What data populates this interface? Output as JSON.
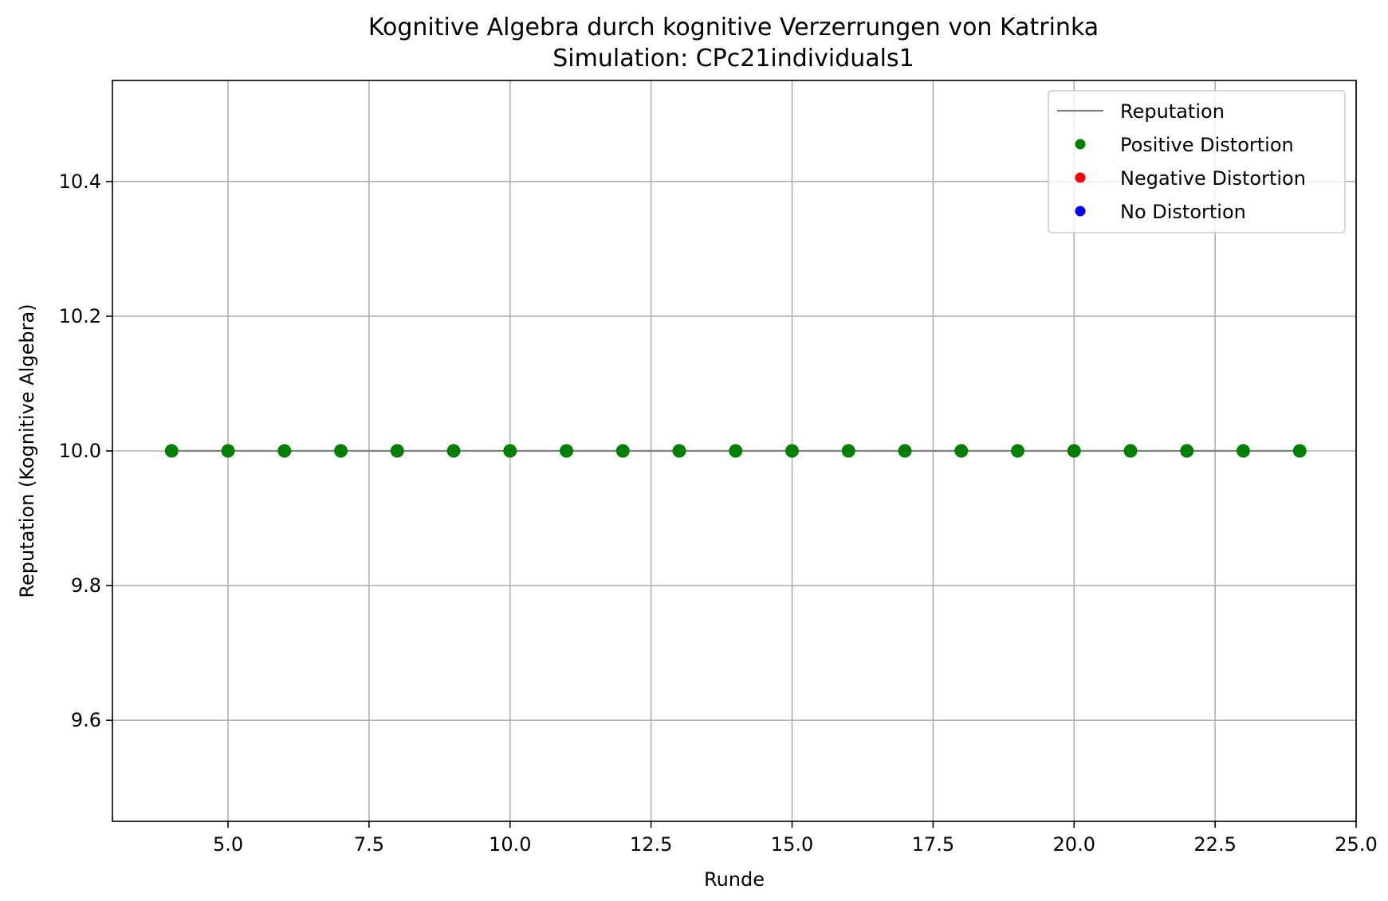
{
  "chart_data": {
    "type": "scatter",
    "title": "Kognitive Algebra durch kognitive Verzerrungen von Katrinka",
    "subtitle": "Simulation: CPc21individuals1",
    "xlabel": "Runde",
    "ylabel": "Reputation (Kognitive Algebra)",
    "xlim": [
      2.95,
      25.0
    ],
    "ylim": [
      9.45,
      10.55
    ],
    "xticks": [
      5.0,
      7.5,
      10.0,
      12.5,
      15.0,
      17.5,
      20.0,
      22.5,
      25.0
    ],
    "xtick_labels": [
      "5.0",
      "7.5",
      "10.0",
      "12.5",
      "15.0",
      "17.5",
      "20.0",
      "22.5",
      "25.0"
    ],
    "yticks": [
      9.6,
      9.8,
      10.0,
      10.2,
      10.4
    ],
    "ytick_labels": [
      "9.6",
      "9.8",
      "10.0",
      "10.2",
      "10.4"
    ],
    "grid": true,
    "legend_position": "top-right",
    "series": [
      {
        "name": "Reputation",
        "kind": "line",
        "color": "#808080",
        "x": [
          4,
          5,
          6,
          7,
          8,
          9,
          10,
          11,
          12,
          13,
          14,
          15,
          16,
          17,
          18,
          19,
          20,
          21,
          22,
          23,
          24
        ],
        "y": [
          10.0,
          10.0,
          10.0,
          10.0,
          10.0,
          10.0,
          10.0,
          10.0,
          10.0,
          10.0,
          10.0,
          10.0,
          10.0,
          10.0,
          10.0,
          10.0,
          10.0,
          10.0,
          10.0,
          10.0,
          10.0
        ]
      },
      {
        "name": "Positive Distortion",
        "kind": "scatter",
        "color": "#008000",
        "x": [
          4,
          5,
          6,
          7,
          8,
          9,
          10,
          11,
          12,
          13,
          14,
          15,
          16,
          17,
          18,
          19,
          20,
          21,
          22,
          23,
          24
        ],
        "y": [
          10.0,
          10.0,
          10.0,
          10.0,
          10.0,
          10.0,
          10.0,
          10.0,
          10.0,
          10.0,
          10.0,
          10.0,
          10.0,
          10.0,
          10.0,
          10.0,
          10.0,
          10.0,
          10.0,
          10.0,
          10.0
        ]
      },
      {
        "name": "Negative Distortion",
        "kind": "scatter",
        "color": "#ff0000",
        "x": [],
        "y": []
      },
      {
        "name": "No Distortion",
        "kind": "scatter",
        "color": "#0000ff",
        "x": [],
        "y": []
      }
    ]
  }
}
